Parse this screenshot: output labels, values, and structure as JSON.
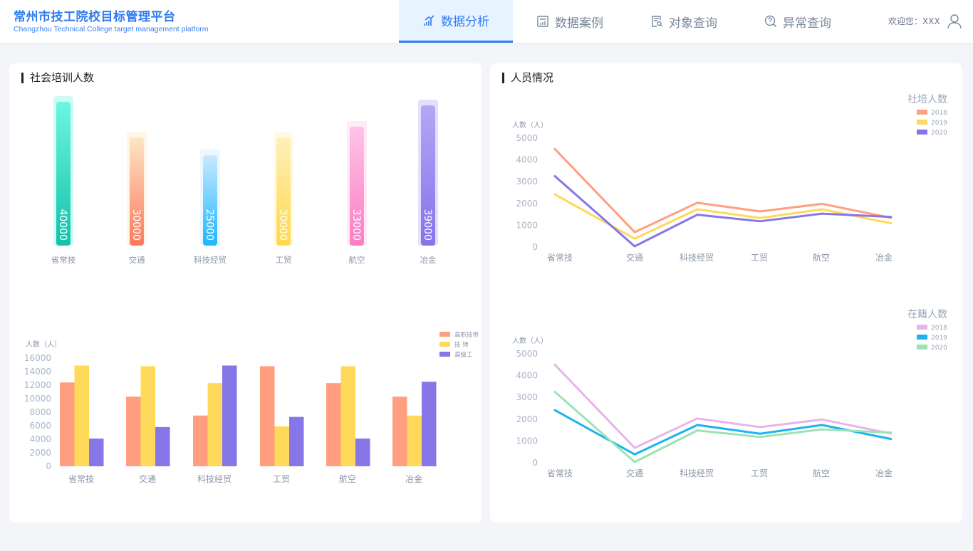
{
  "header": {
    "title": "常州市技工院校目标管理平台",
    "subtitle": "Changzhou Technical College target management platform",
    "welcome": "欢迎您：XXX"
  },
  "nav": [
    {
      "label": "数据分析",
      "icon": "chart-icon",
      "active": true
    },
    {
      "label": "数据案例",
      "icon": "calculator-icon"
    },
    {
      "label": "对象查询",
      "icon": "document-search-icon"
    },
    {
      "label": "异常查询",
      "icon": "question-search-icon"
    }
  ],
  "left_card": {
    "title": "社会培训人数"
  },
  "right_card": {
    "title": "人员情况"
  },
  "chart_data": [
    {
      "type": "bar",
      "categories": [
        "省常技",
        "交通",
        "科技经贸",
        "工贸",
        "航空",
        "冶金"
      ],
      "values": [
        40000,
        30000,
        25000,
        30000,
        33000,
        39000
      ],
      "colors": [
        [
          "#6ff5e0",
          "#12c2a8"
        ],
        [
          "#ffe6c4",
          "#fa7a5e"
        ],
        [
          "#c9e9ff",
          "#1fb6ff"
        ],
        [
          "#fff0bb",
          "#ffd84a"
        ],
        [
          "#ffc4e6",
          "#fb7dc4"
        ],
        [
          "#b3a7f5",
          "#8473ea"
        ]
      ]
    },
    {
      "type": "bar",
      "ylabel": "人数（人）",
      "ylim": [
        0,
        16000
      ],
      "yticks": [
        0,
        2000,
        4000,
        6000,
        8000,
        10000,
        12000,
        14000,
        16000
      ],
      "categories": [
        "省常技",
        "交通",
        "科技经贸",
        "工贸",
        "航空",
        "冶金"
      ],
      "legend": "top-right",
      "series": [
        {
          "name": "高职技师",
          "color": "#ff9f7f",
          "values": [
            12400,
            10300,
            7500,
            14800,
            12300,
            10300
          ]
        },
        {
          "name": "技 师",
          "color": "#ffd95a",
          "values": [
            14900,
            14800,
            12300,
            5900,
            14800,
            7500
          ]
        },
        {
          "name": "高级工",
          "color": "#8676e8",
          "values": [
            4100,
            5800,
            14900,
            7300,
            4100,
            12500
          ]
        }
      ]
    },
    {
      "type": "line",
      "title": "社培人数",
      "ylabel": "人数（人）",
      "ylim": [
        0,
        5000
      ],
      "yticks": [
        0,
        1000,
        2000,
        3000,
        4000,
        5000
      ],
      "categories": [
        "省常技",
        "交通",
        "科技经贸",
        "工贸",
        "航空",
        "冶金"
      ],
      "legend": "top-right",
      "series": [
        {
          "name": "2018",
          "color": "#ff9f7f",
          "values": [
            4500,
            650,
            2000,
            1600,
            1950,
            1300
          ]
        },
        {
          "name": "2019",
          "color": "#ffd95a",
          "values": [
            2400,
            350,
            1700,
            1300,
            1700,
            1050
          ]
        },
        {
          "name": "2020",
          "color": "#8676e8",
          "values": [
            3250,
            0,
            1450,
            1150,
            1500,
            1350
          ]
        }
      ]
    },
    {
      "type": "line",
      "title": "在籍人数",
      "ylabel": "人数（人）",
      "ylim": [
        0,
        5000
      ],
      "yticks": [
        0,
        1000,
        2000,
        3000,
        4000,
        5000
      ],
      "categories": [
        "省常技",
        "交通",
        "科技经贸",
        "工贸",
        "航空",
        "冶金"
      ],
      "legend": "top-right",
      "series": [
        {
          "name": "2018",
          "color": "#e6b6ea",
          "values": [
            4500,
            650,
            2000,
            1600,
            1950,
            1300
          ]
        },
        {
          "name": "2019",
          "color": "#1fb2f0",
          "values": [
            2400,
            350,
            1700,
            1300,
            1700,
            1050
          ]
        },
        {
          "name": "2020",
          "color": "#9be3b4",
          "values": [
            3250,
            0,
            1450,
            1150,
            1500,
            1350
          ]
        }
      ]
    }
  ]
}
